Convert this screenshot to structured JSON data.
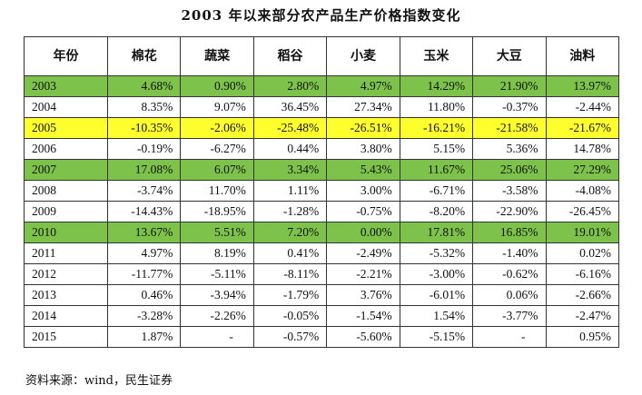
{
  "chart_data": {
    "type": "table",
    "title": "2003 年以来部分农产品生产价格指数变化",
    "columns": [
      "年份",
      "棉花",
      "蔬菜",
      "稻谷",
      "小麦",
      "玉米",
      "大豆",
      "油料"
    ],
    "rows": [
      {
        "year": "2003",
        "values": [
          "4.68%",
          "0.90%",
          "2.80%",
          "4.97%",
          "14.29%",
          "21.90%",
          "13.97%"
        ],
        "highlight": "#7cc24b"
      },
      {
        "year": "2004",
        "values": [
          "8.35%",
          "9.07%",
          "36.45%",
          "27.34%",
          "11.80%",
          "-0.37%",
          "-2.44%"
        ],
        "highlight": ""
      },
      {
        "year": "2005",
        "values": [
          "-10.35%",
          "-2.06%",
          "-25.48%",
          "-26.51%",
          "-16.21%",
          "-21.58%",
          "-21.67%"
        ],
        "highlight": "#ffff2e"
      },
      {
        "year": "2006",
        "values": [
          "-0.19%",
          "-6.27%",
          "0.44%",
          "3.80%",
          "5.15%",
          "5.36%",
          "14.78%"
        ],
        "highlight": ""
      },
      {
        "year": "2007",
        "values": [
          "17.08%",
          "6.07%",
          "3.34%",
          "5.43%",
          "11.67%",
          "25.06%",
          "27.29%"
        ],
        "highlight": "#7cc24b"
      },
      {
        "year": "2008",
        "values": [
          "-3.74%",
          "11.70%",
          "1.11%",
          "3.00%",
          "-6.71%",
          "-3.58%",
          "-4.08%"
        ],
        "highlight": ""
      },
      {
        "year": "2009",
        "values": [
          "-14.43%",
          "-18.95%",
          "-1.28%",
          "-0.75%",
          "-8.20%",
          "-22.90%",
          "-26.45%"
        ],
        "highlight": ""
      },
      {
        "year": "2010",
        "values": [
          "13.67%",
          "5.51%",
          "7.20%",
          "0.00%",
          "17.81%",
          "16.85%",
          "19.01%"
        ],
        "highlight": "#7cc24b"
      },
      {
        "year": "2011",
        "values": [
          "4.97%",
          "8.19%",
          "0.41%",
          "-2.49%",
          "-5.32%",
          "-1.40%",
          "0.02%"
        ],
        "highlight": ""
      },
      {
        "year": "2012",
        "values": [
          "-11.77%",
          "-5.11%",
          "-8.11%",
          "-2.21%",
          "-3.00%",
          "-0.62%",
          "-6.16%"
        ],
        "highlight": ""
      },
      {
        "year": "2013",
        "values": [
          "0.46%",
          "-3.94%",
          "-1.79%",
          "3.76%",
          "-6.01%",
          "0.06%",
          "-2.66%"
        ],
        "highlight": ""
      },
      {
        "year": "2014",
        "values": [
          "-3.28%",
          "-2.26%",
          "-0.05%",
          "-1.54%",
          "1.54%",
          "-3.77%",
          "-2.47%"
        ],
        "highlight": ""
      },
      {
        "year": "2015",
        "values": [
          "1.87%",
          "-",
          "-0.57%",
          "-5.60%",
          "-5.15%",
          "-",
          "0.95%"
        ],
        "highlight": ""
      }
    ],
    "source": "资料来源：wind，民生证券"
  }
}
